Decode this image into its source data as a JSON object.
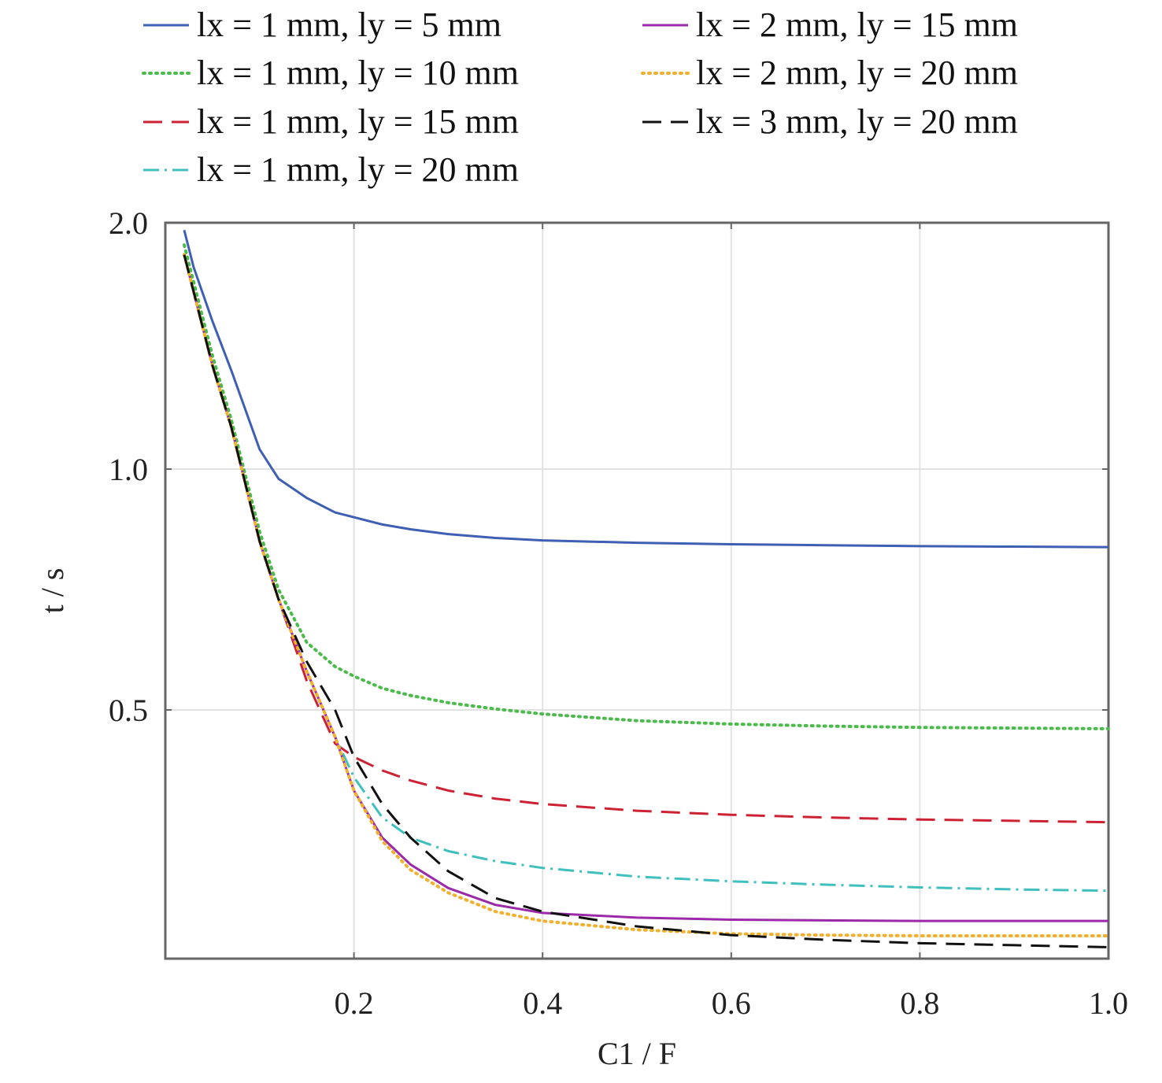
{
  "chart_data": {
    "type": "line",
    "xlabel": "C1 / F",
    "ylabel": "t / s",
    "xlim": [
      0.0,
      1.0
    ],
    "y_ticks": [
      "0.5",
      "1.0",
      "2.0"
    ],
    "x_ticks": [
      "0.2",
      "0.4",
      "0.6",
      "0.8",
      "1.0"
    ],
    "grid": true,
    "legend_position": "top",
    "x": [
      0.02,
      0.03,
      0.05,
      0.07,
      0.1,
      0.12,
      0.15,
      0.18,
      0.2,
      0.23,
      0.26,
      0.3,
      0.35,
      0.4,
      0.5,
      0.6,
      0.7,
      0.8,
      0.9,
      1.0
    ],
    "series": [
      {
        "name": "lx = 1 mm, ly = 5 mm",
        "color": "#3f5fb3",
        "dash": "",
        "values": [
          1.97,
          1.82,
          1.6,
          1.4,
          1.08,
          0.98,
          0.94,
          0.91,
          0.9,
          0.885,
          0.875,
          0.865,
          0.857,
          0.852,
          0.847,
          0.844,
          0.842,
          0.84,
          0.839,
          0.838
        ]
      },
      {
        "name": "lx = 1 mm, ly = 10 mm",
        "color": "#4cbb4c",
        "dash": "2,6",
        "values": [
          1.91,
          1.76,
          1.46,
          1.2,
          0.87,
          0.75,
          0.64,
          0.59,
          0.57,
          0.545,
          0.53,
          0.515,
          0.502,
          0.494,
          0.484,
          0.479,
          0.476,
          0.474,
          0.473,
          0.472
        ]
      },
      {
        "name": "lx = 1 mm, ly = 15 mm",
        "color": "#cc2233",
        "dash": "24,12",
        "values": [
          1.87,
          1.72,
          1.42,
          1.17,
          0.85,
          0.73,
          0.56,
          0.45,
          0.43,
          0.41,
          0.395,
          0.38,
          0.368,
          0.36,
          0.35,
          0.344,
          0.34,
          0.337,
          0.335,
          0.333
        ]
      },
      {
        "name": "lx = 1 mm, ly = 20 mm",
        "color": "#3fc0bd",
        "dash": "20,7,3,7",
        "values": [
          1.87,
          1.72,
          1.42,
          1.17,
          0.85,
          0.73,
          0.58,
          0.46,
          0.4,
          0.34,
          0.31,
          0.29,
          0.275,
          0.265,
          0.252,
          0.245,
          0.24,
          0.236,
          0.233,
          0.231
        ]
      },
      {
        "name": "lx = 2 mm, ly = 15 mm",
        "color": "#9a2aa8",
        "dash": "",
        "values": [
          1.87,
          1.72,
          1.42,
          1.17,
          0.85,
          0.73,
          0.58,
          0.46,
          0.38,
          0.31,
          0.27,
          0.235,
          0.21,
          0.198,
          0.191,
          0.188,
          0.187,
          0.186,
          0.186,
          0.186
        ]
      },
      {
        "name": "lx = 2 mm, ly = 20 mm",
        "color": "#f0b030",
        "dash": "2,6",
        "values": [
          1.87,
          1.72,
          1.42,
          1.17,
          0.85,
          0.73,
          0.58,
          0.46,
          0.38,
          0.305,
          0.262,
          0.228,
          0.2,
          0.186,
          0.173,
          0.167,
          0.165,
          0.164,
          0.164,
          0.164
        ]
      },
      {
        "name": "lx = 3 mm, ly = 20 mm",
        "color": "#111111",
        "dash": "24,12",
        "values": [
          1.87,
          1.72,
          1.42,
          1.17,
          0.85,
          0.73,
          0.6,
          0.5,
          0.43,
          0.36,
          0.31,
          0.26,
          0.22,
          0.2,
          0.178,
          0.165,
          0.158,
          0.153,
          0.15,
          0.147
        ]
      }
    ]
  }
}
